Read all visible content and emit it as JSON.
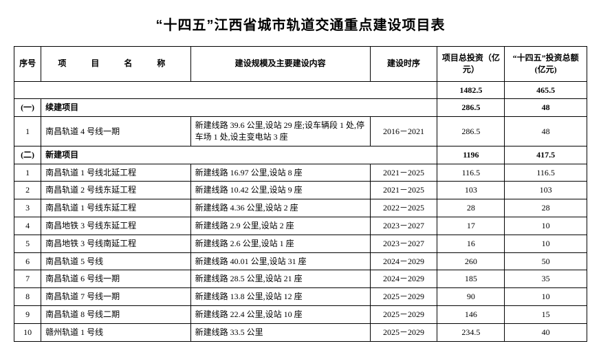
{
  "title": "“十四五”江西省城市轨道交通重点建设项目表",
  "headers": {
    "seq": "序号",
    "name": "项　目　名　称",
    "desc": "建设规模及主要建设内容",
    "time": "建设时序",
    "inv": "项目总投资（亿元）",
    "inv2": "“十四五”投资总额(亿元)"
  },
  "totals": {
    "inv": "1482.5",
    "inv2": "465.5"
  },
  "section1": {
    "label": "(一)",
    "name": "续建项目",
    "inv": "286.5",
    "inv2": "48",
    "rows": [
      {
        "seq": "1",
        "name": "南昌轨道 4 号线一期",
        "desc": "新建线路 39.6 公里,设站 29 座;设车辆段 1 处,停车场 1 处,设主变电站 3 座",
        "time": "2016－2021",
        "inv": "286.5",
        "inv2": "48"
      }
    ]
  },
  "section2": {
    "label": "(二)",
    "name": "新建项目",
    "inv": "1196",
    "inv2": "417.5",
    "rows": [
      {
        "seq": "1",
        "name": "南昌轨道 1 号线北延工程",
        "desc": "新建线路 16.97 公里,设站 8 座",
        "time": "2021－2025",
        "inv": "116.5",
        "inv2": "116.5"
      },
      {
        "seq": "2",
        "name": "南昌轨道 2 号线东延工程",
        "desc": "新建线路 10.42 公里,设站 9 座",
        "time": "2021－2025",
        "inv": "103",
        "inv2": "103"
      },
      {
        "seq": "3",
        "name": "南昌轨道 1 号线东延工程",
        "desc": "新建线路 4.36 公里,设站 2 座",
        "time": "2022－2025",
        "inv": "28",
        "inv2": "28"
      },
      {
        "seq": "4",
        "name": "南昌地铁 3 号线东延工程",
        "desc": "新建线路 2.9 公里,设站 2 座",
        "time": "2023－2027",
        "inv": "17",
        "inv2": "10"
      },
      {
        "seq": "5",
        "name": "南昌地铁 3 号线南延工程",
        "desc": "新建线路 2.6 公里,设站 1 座",
        "time": "2023－2027",
        "inv": "16",
        "inv2": "10"
      },
      {
        "seq": "6",
        "name": "南昌轨道 5 号线",
        "desc": "新建线路 40.01 公里,设站 31 座",
        "time": "2024－2029",
        "inv": "260",
        "inv2": "50"
      },
      {
        "seq": "7",
        "name": "南昌轨道 6 号线一期",
        "desc": "新建线路 28.5 公里,设站 21 座",
        "time": "2024－2029",
        "inv": "185",
        "inv2": "35"
      },
      {
        "seq": "8",
        "name": "南昌轨道 7 号线一期",
        "desc": "新建线路 13.8 公里,设站 12 座",
        "time": "2025－2029",
        "inv": "90",
        "inv2": "10"
      },
      {
        "seq": "9",
        "name": "南昌轨道 8 号线二期",
        "desc": "新建线路 22.4 公里,设站 10 座",
        "time": "2025－2029",
        "inv": "146",
        "inv2": "15"
      },
      {
        "seq": "10",
        "name": "赣州轨道 1 号线",
        "desc": "新建线路 33.5 公里",
        "time": "2025－2029",
        "inv": "234.5",
        "inv2": "40"
      }
    ]
  }
}
